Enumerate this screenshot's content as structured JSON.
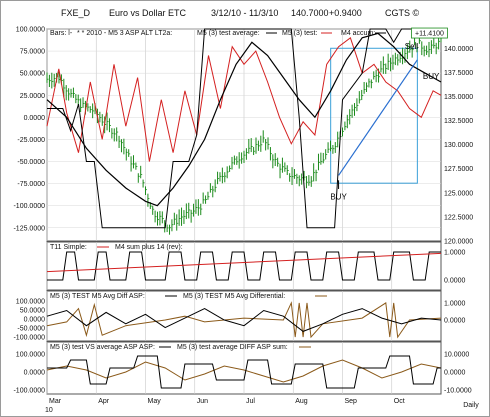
{
  "header": {
    "symbol": "FXE_D",
    "name": "Euro vs Dollar ETC",
    "range": "3/12/10 - 11/3/10",
    "last": "140.7000",
    "change": "+0.9400",
    "brand": "CGTS ©"
  },
  "colors": {
    "price_up": "#1a8a1a",
    "indicator": "#d42020",
    "overlay": "#000000",
    "osc": "#8b5a1a",
    "box": "#3aa0d8",
    "trend": "#2a6fd0"
  },
  "chart_data": [
    {
      "type": "line",
      "panel": "price",
      "legend": {
        "bars_label": "Bars: l-",
        "title": "* * 2010 - M5 3 ASP ALT LT2a:",
        "s1": "M5 (3) test average:",
        "s2": "M5 (3) test:",
        "s3": "M4 accum:"
      },
      "ylim_left": [
        -140000,
        100000
      ],
      "yticks_left": [
        "100.0000",
        "75.0000",
        "50.0000",
        "25.0000",
        "0.0000",
        "-25.0000",
        "-50.0000",
        "-75.0000",
        "-100.0000",
        "-125.0000"
      ],
      "ylim_right": [
        120,
        142
      ],
      "yticks_right": [
        "140.0000",
        "137.5000",
        "135.0000",
        "132.5000",
        "130.0000",
        "127.5000",
        "125.0000",
        "122.5000",
        "120.0000"
      ],
      "annotations": {
        "sell": "Sell",
        "buy1": "BUY",
        "buy2": "BUY",
        "profit": "+11.4100"
      },
      "price_path": [
        [
          0,
          136.8
        ],
        [
          0.03,
          137.0
        ],
        [
          0.06,
          135.2
        ],
        [
          0.09,
          134.0
        ],
        [
          0.12,
          133.5
        ],
        [
          0.15,
          132.1
        ],
        [
          0.18,
          131.0
        ],
        [
          0.21,
          128.5
        ],
        [
          0.24,
          126.5
        ],
        [
          0.27,
          123.0
        ],
        [
          0.31,
          121.5
        ],
        [
          0.34,
          122.5
        ],
        [
          0.37,
          123.0
        ],
        [
          0.4,
          124.0
        ],
        [
          0.43,
          126.0
        ],
        [
          0.46,
          127.5
        ],
        [
          0.49,
          128.8
        ],
        [
          0.52,
          129.5
        ],
        [
          0.55,
          130.5
        ],
        [
          0.58,
          128.2
        ],
        [
          0.61,
          127.0
        ],
        [
          0.64,
          126.5
        ],
        [
          0.67,
          126.5
        ],
        [
          0.7,
          128.5
        ],
        [
          0.73,
          130.0
        ],
        [
          0.76,
          132.5
        ],
        [
          0.79,
          134.5
        ],
        [
          0.82,
          136.5
        ],
        [
          0.85,
          137.8
        ],
        [
          0.88,
          138.8
        ],
        [
          0.91,
          139.7
        ],
        [
          0.94,
          140.5
        ],
        [
          0.97,
          139.8
        ],
        [
          1.0,
          140.7
        ]
      ],
      "red_path": [
        [
          0,
          -10000
        ],
        [
          0.03,
          55000
        ],
        [
          0.05,
          5000
        ],
        [
          0.08,
          -40000
        ],
        [
          0.11,
          40000
        ],
        [
          0.14,
          -25000
        ],
        [
          0.17,
          60000
        ],
        [
          0.2,
          -10000
        ],
        [
          0.23,
          45000
        ],
        [
          0.26,
          -50000
        ],
        [
          0.29,
          20000
        ],
        [
          0.32,
          -40000
        ],
        [
          0.35,
          30000
        ],
        [
          0.38,
          -20000
        ],
        [
          0.41,
          70000
        ],
        [
          0.44,
          10000
        ],
        [
          0.47,
          80000
        ],
        [
          0.5,
          60000
        ],
        [
          0.53,
          75000
        ],
        [
          0.56,
          40000
        ],
        [
          0.59,
          0
        ],
        [
          0.62,
          -30000
        ],
        [
          0.65,
          -5000
        ],
        [
          0.68,
          -20000
        ],
        [
          0.71,
          60000
        ],
        [
          0.74,
          80000
        ],
        [
          0.77,
          90000
        ],
        [
          0.8,
          50000
        ],
        [
          0.83,
          60000
        ],
        [
          0.86,
          40000
        ],
        [
          0.89,
          30000
        ],
        [
          0.92,
          10000
        ],
        [
          0.95,
          0
        ],
        [
          0.98,
          30000
        ],
        [
          1.0,
          25000
        ]
      ],
      "avg_path": [
        [
          0,
          20000
        ],
        [
          0.05,
          0
        ],
        [
          0.1,
          -35000
        ],
        [
          0.15,
          -60000
        ],
        [
          0.2,
          -80000
        ],
        [
          0.25,
          -95000
        ],
        [
          0.28,
          -100000
        ],
        [
          0.32,
          -80000
        ],
        [
          0.36,
          -55000
        ],
        [
          0.4,
          -25000
        ],
        [
          0.44,
          20000
        ],
        [
          0.48,
          60000
        ],
        [
          0.52,
          85000
        ],
        [
          0.56,
          70000
        ],
        [
          0.6,
          45000
        ],
        [
          0.64,
          20000
        ],
        [
          0.68,
          0
        ],
        [
          0.72,
          30000
        ],
        [
          0.76,
          65000
        ],
        [
          0.8,
          90000
        ],
        [
          0.84,
          95000
        ],
        [
          0.88,
          80000
        ],
        [
          0.92,
          60000
        ],
        [
          0.96,
          50000
        ],
        [
          1.0,
          40000
        ]
      ],
      "accum_path": [
        [
          0,
          10000
        ],
        [
          0.04,
          10000
        ],
        [
          0.06,
          -15000
        ],
        [
          0.08,
          15000
        ],
        [
          0.1,
          -50000
        ],
        [
          0.12,
          -50000
        ],
        [
          0.14,
          -125000
        ],
        [
          0.3,
          -125000
        ],
        [
          0.32,
          -50000
        ],
        [
          0.36,
          -50000
        ],
        [
          0.38,
          -20000
        ],
        [
          0.4,
          100000
        ],
        [
          0.62,
          100000
        ],
        [
          0.64,
          0
        ],
        [
          0.66,
          -125000
        ],
        [
          0.73,
          -125000
        ],
        [
          0.75,
          20000
        ],
        [
          0.8,
          50000
        ],
        [
          0.82,
          100000
        ],
        [
          0.86,
          100000
        ],
        [
          0.88,
          85000
        ],
        [
          0.9,
          100000
        ],
        [
          1.0,
          100000
        ]
      ]
    },
    {
      "type": "line",
      "panel": "t11",
      "legend": {
        "s1": "T11 Simple:",
        "s2": "M4 sum plus 14 (rev):"
      },
      "yticks_right": [
        "1.0000",
        "0.0000"
      ],
      "step_path": [
        [
          0,
          0
        ],
        [
          0.04,
          0
        ],
        [
          0.05,
          1
        ],
        [
          0.07,
          1
        ],
        [
          0.08,
          0
        ],
        [
          0.12,
          0
        ],
        [
          0.13,
          1
        ],
        [
          0.15,
          1
        ],
        [
          0.16,
          0
        ],
        [
          0.2,
          0
        ],
        [
          0.21,
          1
        ],
        [
          0.24,
          1
        ],
        [
          0.25,
          0
        ],
        [
          0.3,
          0
        ],
        [
          0.31,
          1
        ],
        [
          0.34,
          1
        ],
        [
          0.35,
          0
        ],
        [
          0.38,
          0
        ],
        [
          0.39,
          1
        ],
        [
          0.42,
          1
        ],
        [
          0.43,
          0
        ],
        [
          0.46,
          0
        ],
        [
          0.47,
          1
        ],
        [
          0.5,
          1
        ],
        [
          0.51,
          0
        ],
        [
          0.54,
          0
        ],
        [
          0.55,
          1
        ],
        [
          0.58,
          1
        ],
        [
          0.59,
          0
        ],
        [
          0.62,
          0
        ],
        [
          0.63,
          1
        ],
        [
          0.66,
          1
        ],
        [
          0.67,
          0
        ],
        [
          0.7,
          0
        ],
        [
          0.71,
          1
        ],
        [
          0.74,
          1
        ],
        [
          0.75,
          0
        ],
        [
          0.78,
          0
        ],
        [
          0.79,
          1
        ],
        [
          0.83,
          1
        ],
        [
          0.84,
          0
        ],
        [
          0.87,
          0
        ],
        [
          0.88,
          1
        ],
        [
          0.92,
          1
        ],
        [
          0.93,
          0
        ],
        [
          0.96,
          0
        ],
        [
          0.97,
          1
        ],
        [
          1.0,
          1
        ]
      ],
      "red_line": [
        [
          0,
          0.3
        ],
        [
          1.0,
          0.95
        ]
      ]
    },
    {
      "type": "line",
      "panel": "osc1",
      "legend": {
        "s1": "M5 (3) TEST M5 Avg Diff ASP:",
        "s2": "M5 (3) TEST M5 Avg Differential:"
      },
      "yticks_left": [
        "100.0000",
        "50.0000",
        "0.0000",
        "-50.0000",
        "-100.0000"
      ],
      "yticks_right": [
        "1.0000",
        "0.0000"
      ],
      "black_path": [
        [
          0,
          0.2
        ],
        [
          0.05,
          0.5
        ],
        [
          0.1,
          -0.3
        ],
        [
          0.15,
          0.4
        ],
        [
          0.2,
          -0.2
        ],
        [
          0.25,
          0.3
        ],
        [
          0.3,
          -0.4
        ],
        [
          0.35,
          0.1
        ],
        [
          0.4,
          0.6
        ],
        [
          0.45,
          0.0
        ],
        [
          0.5,
          -0.3
        ],
        [
          0.55,
          0.5
        ],
        [
          0.6,
          0.2
        ],
        [
          0.65,
          -0.6
        ],
        [
          0.7,
          -0.2
        ],
        [
          0.75,
          0.3
        ],
        [
          0.8,
          0.6
        ],
        [
          0.85,
          0.1
        ],
        [
          0.9,
          -0.2
        ],
        [
          0.95,
          0.1
        ],
        [
          1.0,
          0.0
        ]
      ],
      "brown_path": [
        [
          0,
          -0.3
        ],
        [
          0.05,
          -0.1
        ],
        [
          0.08,
          0.6
        ],
        [
          0.1,
          -0.8
        ],
        [
          0.12,
          0.8
        ],
        [
          0.14,
          -0.8
        ],
        [
          0.2,
          -0.3
        ],
        [
          0.3,
          0.0
        ],
        [
          0.35,
          0.2
        ],
        [
          0.4,
          -0.1
        ],
        [
          0.5,
          0.1
        ],
        [
          0.6,
          0.0
        ],
        [
          0.62,
          0.9
        ],
        [
          0.63,
          -0.9
        ],
        [
          0.64,
          0.9
        ],
        [
          0.65,
          -0.9
        ],
        [
          0.66,
          0.9
        ],
        [
          0.67,
          -0.9
        ],
        [
          0.7,
          -0.2
        ],
        [
          0.8,
          0.1
        ],
        [
          0.86,
          0.9
        ],
        [
          0.87,
          -0.9
        ],
        [
          0.88,
          0.9
        ],
        [
          0.89,
          -0.9
        ],
        [
          0.92,
          0.0
        ],
        [
          1.0,
          0.1
        ]
      ]
    },
    {
      "type": "line",
      "panel": "osc2",
      "legend": {
        "s1": "M5 (3) test VS average ASP ASP:",
        "s2": "M5 (3) test average DIFF ASP sum:"
      },
      "yticks_left": [
        "100.0000",
        "0.0000",
        "-100.0000"
      ],
      "yticks_right": [
        "10.0000",
        "0.0000",
        "-10.0000"
      ],
      "black_path": [
        [
          0,
          0.2
        ],
        [
          0.05,
          0.2
        ],
        [
          0.06,
          0.6
        ],
        [
          0.1,
          0.6
        ],
        [
          0.11,
          -0.6
        ],
        [
          0.15,
          -0.6
        ],
        [
          0.16,
          0.2
        ],
        [
          0.22,
          0.2
        ],
        [
          0.23,
          0.8
        ],
        [
          0.28,
          0.8
        ],
        [
          0.29,
          -0.8
        ],
        [
          0.34,
          -0.8
        ],
        [
          0.35,
          0.4
        ],
        [
          0.42,
          0.4
        ],
        [
          0.43,
          -0.4
        ],
        [
          0.5,
          -0.4
        ],
        [
          0.51,
          0.6
        ],
        [
          0.56,
          0.6
        ],
        [
          0.57,
          -0.6
        ],
        [
          0.62,
          -0.6
        ],
        [
          0.63,
          0.4
        ],
        [
          0.7,
          0.4
        ],
        [
          0.71,
          -0.8
        ],
        [
          0.78,
          -0.8
        ],
        [
          0.79,
          0.2
        ],
        [
          0.86,
          0.2
        ],
        [
          0.87,
          0.8
        ],
        [
          0.92,
          0.8
        ],
        [
          0.93,
          -0.6
        ],
        [
          0.98,
          -0.6
        ],
        [
          0.99,
          0.2
        ],
        [
          1.0,
          0.2
        ]
      ],
      "brown_path": [
        [
          0,
          0.1
        ],
        [
          0.05,
          0.3
        ],
        [
          0.1,
          0.1
        ],
        [
          0.15,
          -0.3
        ],
        [
          0.2,
          0.0
        ],
        [
          0.25,
          0.5
        ],
        [
          0.3,
          0.2
        ],
        [
          0.35,
          -0.4
        ],
        [
          0.4,
          -0.1
        ],
        [
          0.45,
          0.3
        ],
        [
          0.5,
          0.1
        ],
        [
          0.55,
          -0.2
        ],
        [
          0.6,
          -0.5
        ],
        [
          0.65,
          -0.2
        ],
        [
          0.7,
          0.3
        ],
        [
          0.75,
          0.6
        ],
        [
          0.8,
          0.2
        ],
        [
          0.85,
          -0.3
        ],
        [
          0.9,
          0.0
        ],
        [
          0.95,
          0.4
        ],
        [
          1.0,
          0.2
        ]
      ]
    }
  ],
  "xaxis": {
    "months": [
      "Mar",
      "Apr",
      "May",
      "Jun",
      "Jul",
      "Aug",
      "Sep",
      "Oct"
    ],
    "year": "10",
    "period": "Daily"
  }
}
